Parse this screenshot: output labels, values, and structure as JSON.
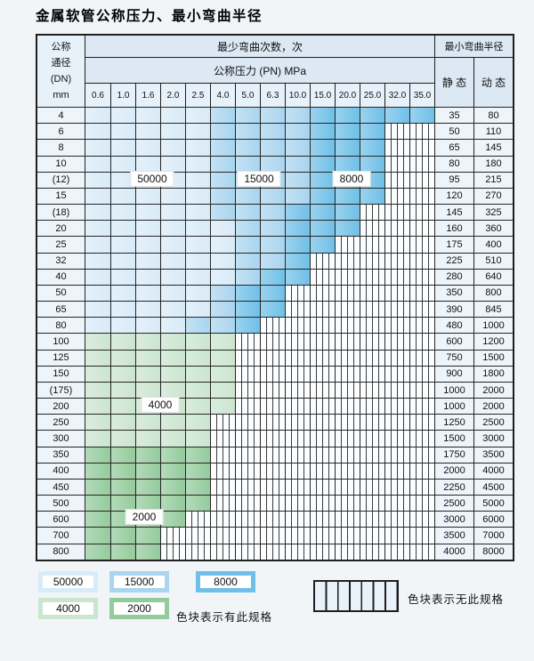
{
  "title": "金属软管公称压力、最小弯曲半径",
  "table": {
    "corner_lines": [
      "公称",
      "通径",
      "(DN)",
      "mm"
    ],
    "bend_times_header": "最少弯曲次数，次",
    "pn_header": "公称压力 (PN) MPa",
    "radius_header": "最小弯曲半径",
    "static_label": "静 态",
    "dynamic_label": "动 态",
    "pressures": [
      "0.6",
      "1.0",
      "1.6",
      "2.0",
      "2.5",
      "4.0",
      "5.0",
      "6.3",
      "10.0",
      "15.0",
      "20.0",
      "25.0",
      "32.0",
      "35.0"
    ]
  },
  "zone_labels": [
    {
      "text": "50000"
    },
    {
      "text": "15000"
    },
    {
      "text": "8000"
    },
    {
      "text": "4000"
    },
    {
      "text": "2000"
    }
  ],
  "colors": {
    "cycles_50000": "#d8ebf8",
    "cycles_15000": "#a9d5ef",
    "cycles_8000": "#6fc0e8",
    "cycles_4000": "#cbe5cf",
    "cycles_2000": "#94cb9c",
    "no_spec_hatch_bg": "#fbfdff"
  },
  "chart_data": {
    "type": "table",
    "title": "金属软管公称压力、最小弯曲半径",
    "columns_pn_mpa": [
      0.6,
      1.0,
      1.6,
      2.0,
      2.5,
      4.0,
      5.0,
      6.3,
      10.0,
      15.0,
      20.0,
      25.0,
      32.0,
      35.0
    ],
    "zone_encoding": "blue rows: z = last 0-based pressure-column index covered by bend-cycle zones [50000, 15000, 8000]; green rows: cycles zone with 'end' = last covered column index; all columns right of the colored span are hatched = no such specification",
    "rows": [
      {
        "dn": "4",
        "type": "blue",
        "z": [
          4,
          8,
          13
        ],
        "static": 35,
        "dynamic": 80
      },
      {
        "dn": "6",
        "type": "blue",
        "z": [
          4,
          8,
          11
        ],
        "static": 50,
        "dynamic": 110
      },
      {
        "dn": "8",
        "type": "blue",
        "z": [
          4,
          8,
          11
        ],
        "static": 65,
        "dynamic": 145
      },
      {
        "dn": "10",
        "type": "blue",
        "z": [
          4,
          8,
          11
        ],
        "static": 80,
        "dynamic": 180
      },
      {
        "dn": "(12)",
        "type": "blue",
        "z": [
          4,
          8,
          11
        ],
        "static": 95,
        "dynamic": 215
      },
      {
        "dn": "15",
        "type": "blue",
        "z": [
          4,
          8,
          11
        ],
        "static": 120,
        "dynamic": 270
      },
      {
        "dn": "(18)",
        "type": "blue",
        "z": [
          4,
          7,
          10
        ],
        "static": 145,
        "dynamic": 325
      },
      {
        "dn": "20",
        "type": "blue",
        "z": [
          5,
          7,
          10
        ],
        "static": 160,
        "dynamic": 360
      },
      {
        "dn": "25",
        "type": "blue",
        "z": [
          5,
          7,
          9
        ],
        "static": 175,
        "dynamic": 400
      },
      {
        "dn": "32",
        "type": "blue",
        "z": [
          5,
          7,
          8
        ],
        "static": 225,
        "dynamic": 510
      },
      {
        "dn": "40",
        "type": "blue",
        "z": [
          5,
          6,
          8
        ],
        "static": 280,
        "dynamic": 640
      },
      {
        "dn": "50",
        "type": "blue",
        "z": [
          4,
          5,
          7
        ],
        "static": 350,
        "dynamic": 800
      },
      {
        "dn": "65",
        "type": "blue",
        "z": [
          4,
          5,
          7
        ],
        "static": 390,
        "dynamic": 845
      },
      {
        "dn": "80",
        "type": "blue",
        "z": [
          3,
          5,
          6
        ],
        "static": 480,
        "dynamic": 1000
      },
      {
        "dn": "100",
        "type": "green",
        "cycles": "4000",
        "end": 5,
        "static": 600,
        "dynamic": 1200
      },
      {
        "dn": "125",
        "type": "green",
        "cycles": "4000",
        "end": 5,
        "static": 750,
        "dynamic": 1500
      },
      {
        "dn": "150",
        "type": "green",
        "cycles": "4000",
        "end": 5,
        "static": 900,
        "dynamic": 1800
      },
      {
        "dn": "(175)",
        "type": "green",
        "cycles": "4000",
        "end": 5,
        "static": 1000,
        "dynamic": 2000
      },
      {
        "dn": "200",
        "type": "green",
        "cycles": "4000",
        "end": 5,
        "static": 1000,
        "dynamic": 2000
      },
      {
        "dn": "250",
        "type": "green",
        "cycles": "4000",
        "end": 4,
        "static": 1250,
        "dynamic": 2500
      },
      {
        "dn": "300",
        "type": "green",
        "cycles": "4000",
        "end": 4,
        "static": 1500,
        "dynamic": 3000
      },
      {
        "dn": "350",
        "type": "green",
        "cycles": "2000",
        "end": 4,
        "static": 1750,
        "dynamic": 3500
      },
      {
        "dn": "400",
        "type": "green",
        "cycles": "2000",
        "end": 4,
        "static": 2000,
        "dynamic": 4000
      },
      {
        "dn": "450",
        "type": "green",
        "cycles": "2000",
        "end": 4,
        "static": 2250,
        "dynamic": 4500
      },
      {
        "dn": "500",
        "type": "green",
        "cycles": "2000",
        "end": 4,
        "static": 2500,
        "dynamic": 5000
      },
      {
        "dn": "600",
        "type": "green",
        "cycles": "2000",
        "end": 3,
        "static": 3000,
        "dynamic": 6000
      },
      {
        "dn": "700",
        "type": "green",
        "cycles": "2000",
        "end": 2,
        "static": 3500,
        "dynamic": 7000
      },
      {
        "dn": "800",
        "type": "green",
        "cycles": "2000",
        "end": 2,
        "static": 4000,
        "dynamic": 8000
      }
    ]
  },
  "legend": {
    "available": [
      {
        "label": "50000",
        "color": "#d8ebf8"
      },
      {
        "label": "15000",
        "color": "#a9d5ef"
      },
      {
        "label": "8000",
        "color": "#6fc0e8"
      },
      {
        "label": "4000",
        "color": "#cbe5cf"
      },
      {
        "label": "2000",
        "color": "#94cb9c"
      }
    ],
    "available_note": "色块表示有此规格",
    "unavailable_note": "色块表示无此规格"
  }
}
